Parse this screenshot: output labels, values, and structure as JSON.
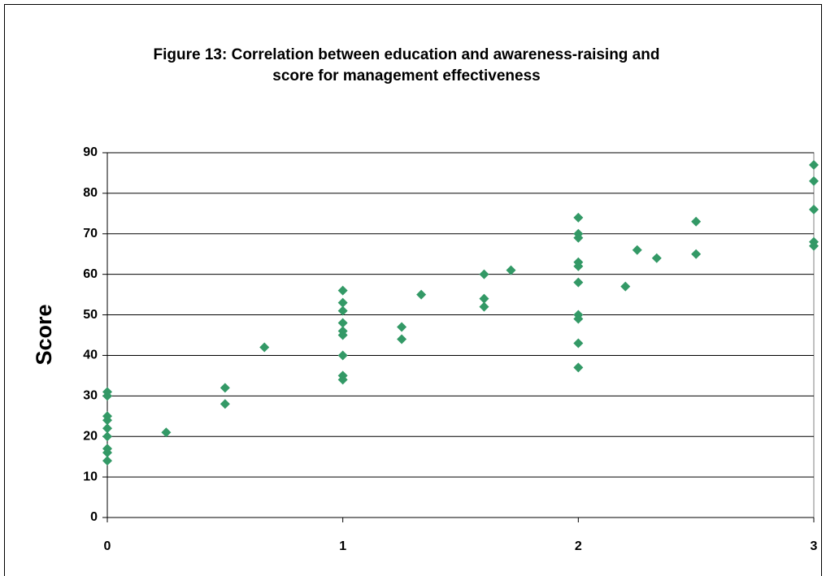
{
  "chart_data": {
    "type": "scatter",
    "title": [
      "Figure 13: Correlation between education and awareness-raising and",
      "score for management effectiveness"
    ],
    "y_label": "Score",
    "x": [
      0,
      0,
      0,
      0,
      0,
      0,
      0,
      0,
      0,
      0.25,
      0.5,
      0.5,
      0.667,
      1,
      1,
      1,
      1,
      1,
      1,
      1,
      1,
      1,
      1.25,
      1.25,
      1.333,
      1.6,
      1.6,
      1.6,
      1.714,
      2,
      2,
      2,
      2,
      2,
      2,
      2,
      2,
      2,
      2,
      2.2,
      2.25,
      2.333,
      2.5,
      2.5,
      3,
      3,
      3,
      3,
      3
    ],
    "y": [
      31,
      30,
      25,
      24,
      22,
      20,
      17,
      16,
      14,
      21,
      32,
      28,
      42,
      56,
      53,
      51,
      48,
      46,
      45,
      40,
      35,
      34,
      47,
      44,
      55,
      60,
      54,
      52,
      61,
      74,
      70,
      69,
      63,
      62,
      58,
      50,
      49,
      43,
      37,
      57,
      66,
      64,
      73,
      65,
      87,
      83,
      76,
      68,
      67
    ],
    "color": "#339966",
    "xlim": [
      0,
      3
    ],
    "xticks": [
      0,
      1,
      2,
      3
    ],
    "ylim": [
      0,
      90
    ],
    "yticks": [
      0,
      10,
      20,
      30,
      40,
      50,
      60,
      70,
      80,
      90
    ],
    "grid": true
  }
}
